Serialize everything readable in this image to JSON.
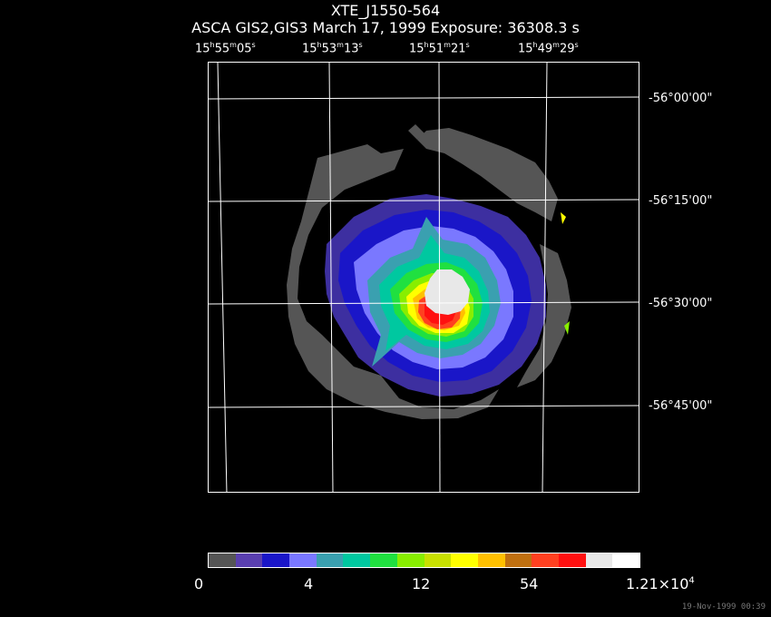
{
  "title": "XTE_J1550-564",
  "subtitle": "ASCA GIS2,GIS3 March 17, 1999 Exposure: 36308.3 s",
  "ra_labels": [
    {
      "h": "15",
      "m": "55",
      "s": "05"
    },
    {
      "h": "15",
      "m": "53",
      "s": "13"
    },
    {
      "h": "15",
      "m": "51",
      "s": "21"
    },
    {
      "h": "15",
      "m": "49",
      "s": "29"
    }
  ],
  "dec_labels": [
    "-56°00'00\"",
    "-56°15'00\"",
    "-56°30'00\"",
    "-56°45'00\""
  ],
  "colorbar": {
    "colors": [
      "#555555",
      "#5a3fb0",
      "#1a16c8",
      "#7a78ff",
      "#3aa0b0",
      "#00c8a0",
      "#20e040",
      "#88ee00",
      "#c8e000",
      "#ffff00",
      "#ffc000",
      "#c07010",
      "#ff4020",
      "#ff1010",
      "#e8e8e8",
      "#ffffff"
    ],
    "tick_labels": [
      "0",
      "4",
      "12",
      "54"
    ],
    "max_label_mantissa": "1.21×10",
    "max_label_exponent": "4"
  },
  "timestamp": "19-Nov-1999 00:39"
}
